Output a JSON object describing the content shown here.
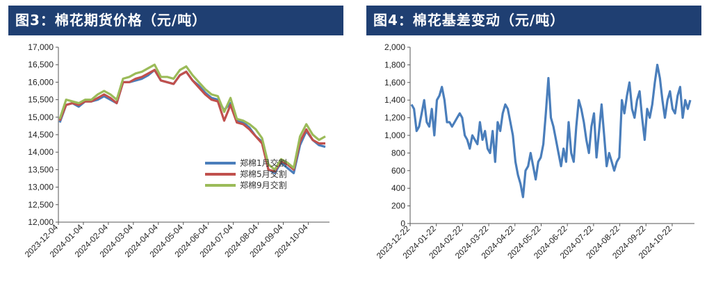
{
  "charts": {
    "left_title": "图3：棉花期货价格（元/吨）",
    "right_title": "图4：棉花基差变动（元/吨）"
  },
  "chart_data": [
    {
      "type": "line",
      "title": "图3：棉花期货价格（元/吨）",
      "ylim": [
        12000,
        17000
      ],
      "yticks": [
        12000,
        12500,
        13000,
        13500,
        14000,
        14500,
        15000,
        15500,
        16000,
        16500,
        17000
      ],
      "yticklabels": [
        "12,000",
        "12,500",
        "13,000",
        "13,500",
        "14,000",
        "14,500",
        "15,000",
        "15,500",
        "16,000",
        "16,500",
        "17,000"
      ],
      "xticklabels": [
        "2023-12-04",
        "2024-01-04",
        "2024-02-04",
        "2024-03-04",
        "2024-04-04",
        "2024-05-04",
        "2024-06-04",
        "2024-07-04",
        "2024-08-04",
        "2024-09-04",
        "2024-10-04"
      ],
      "legend_position": "lower-right",
      "grid": false,
      "series": [
        {
          "name": "郑棉1月交割",
          "color": "#4a7ebb",
          "values": [
            14850,
            15350,
            15400,
            15300,
            15450,
            15450,
            15500,
            15600,
            15500,
            15400,
            16000,
            16000,
            16050,
            16100,
            16200,
            16350,
            16050,
            16000,
            15950,
            16200,
            16300,
            16050,
            15900,
            15700,
            15550,
            15500,
            15200,
            15400,
            14900,
            14850,
            14700,
            14450,
            14300,
            13500,
            13400,
            13700,
            13550,
            13400,
            14200,
            14600,
            14350,
            14200,
            14150
          ]
        },
        {
          "name": "郑棉5月交割",
          "color": "#c0504d",
          "values": [
            14900,
            15350,
            15400,
            15350,
            15450,
            15450,
            15550,
            15650,
            15550,
            15400,
            16000,
            16000,
            16100,
            16150,
            16250,
            16350,
            16050,
            16000,
            15950,
            16200,
            16300,
            16050,
            15850,
            15650,
            15500,
            15450,
            14900,
            15350,
            14850,
            14800,
            14650,
            14450,
            14250,
            13500,
            13450,
            13750,
            13650,
            13500,
            14300,
            14650,
            14350,
            14250,
            14250
          ]
        },
        {
          "name": "郑棉9月交割",
          "color": "#9bbb59",
          "values": [
            14950,
            15500,
            15450,
            15400,
            15500,
            15500,
            15650,
            15750,
            15650,
            15500,
            16100,
            16150,
            16250,
            16300,
            16400,
            16500,
            16150,
            16150,
            16100,
            16350,
            16450,
            16200,
            16000,
            15800,
            15650,
            15600,
            15150,
            15550,
            14950,
            14900,
            14800,
            14650,
            14400,
            13650,
            13500,
            13800,
            13700,
            13550,
            14450,
            14800,
            14500,
            14350,
            14450
          ]
        }
      ]
    },
    {
      "type": "line",
      "title": "图4：棉花基差变动（元/吨）",
      "ylim": [
        0,
        2000
      ],
      "yticks": [
        0,
        200,
        400,
        600,
        800,
        1000,
        1200,
        1400,
        1600,
        1800,
        2000
      ],
      "yticklabels": [
        "0",
        "200",
        "400",
        "600",
        "800",
        "1,000",
        "1,200",
        "1,400",
        "1,600",
        "1,800",
        "2,000"
      ],
      "xticklabels": [
        "2023-12-22",
        "2024-01-22",
        "2024-02-22",
        "2024-03-22",
        "2024-04-22",
        "2024-05-22",
        "2024-06-22",
        "2024-07-22",
        "2024-08-22",
        "2024-09-22",
        "2024-10-22"
      ],
      "grid": false,
      "series": [
        {
          "name": "",
          "color": "#4a7ebb",
          "values": [
            1350,
            1300,
            1050,
            1100,
            1250,
            1400,
            1150,
            1100,
            1300,
            1000,
            1400,
            1450,
            1550,
            1400,
            1150,
            1150,
            1100,
            1150,
            1200,
            1250,
            1200,
            1000,
            950,
            850,
            1000,
            950,
            900,
            1150,
            950,
            1050,
            850,
            800,
            1050,
            700,
            1150,
            1050,
            1250,
            1350,
            1300,
            1150,
            1000,
            700,
            550,
            450,
            300,
            600,
            650,
            800,
            650,
            500,
            700,
            750,
            900,
            1250,
            1650,
            1200,
            1100,
            950,
            800,
            650,
            850,
            700,
            1150,
            800,
            700,
            1100,
            1400,
            1300,
            1150,
            950,
            800,
            1100,
            1250,
            750,
            1050,
            1350,
            1000,
            650,
            800,
            700,
            600,
            700,
            750,
            1400,
            1250,
            1450,
            1600,
            1300,
            1200,
            1400,
            1500,
            1200,
            950,
            1300,
            1200,
            1350,
            1600,
            1800,
            1650,
            1400,
            1200,
            1400,
            1500,
            1300,
            1250,
            1450,
            1550,
            1200,
            1400,
            1300,
            1400
          ]
        }
      ]
    }
  ]
}
